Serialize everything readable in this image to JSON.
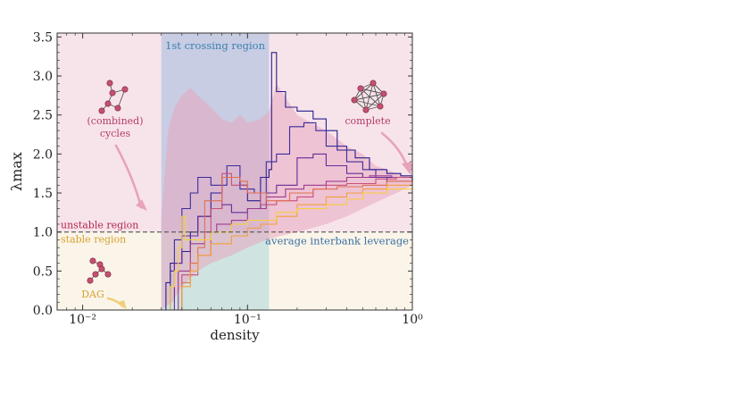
{
  "chart_data": {
    "type": "line",
    "xlabel": "density",
    "ylabel": "λmax",
    "xscale": "log",
    "xlim": [
      0.007,
      1.0
    ],
    "ylim": [
      0.0,
      3.55
    ],
    "xticks": [
      {
        "value": 0.01,
        "label": "10⁻²"
      },
      {
        "value": 0.1,
        "label": "10⁻¹"
      },
      {
        "value": 1.0,
        "label": "10⁰"
      }
    ],
    "yticks": [
      {
        "value": 0.0,
        "label": "0.0"
      },
      {
        "value": 0.5,
        "label": "0.5"
      },
      {
        "value": 1.0,
        "label": "1.0"
      },
      {
        "value": 1.5,
        "label": "1.5"
      },
      {
        "value": 2.0,
        "label": "2.0"
      },
      {
        "value": 2.5,
        "label": "2.5"
      },
      {
        "value": 3.0,
        "label": "3.0"
      },
      {
        "value": 3.5,
        "label": "3.5"
      }
    ],
    "threshold": {
      "y": 1.0,
      "label": "average interbank leverage"
    },
    "crossing_region": {
      "x": [
        0.03,
        0.135
      ],
      "label": "1st crossing region"
    },
    "region_labels": {
      "unstable": "unstable region",
      "stable": "stable region"
    },
    "annotations": [
      {
        "text": "(combined)",
        "x": 0.0155,
        "y": 2.4
      },
      {
        "text": "cycles",
        "x": 0.0155,
        "y": 2.25
      },
      {
        "text": "complete",
        "x": 0.52,
        "y": 2.42
      },
      {
        "text": "DAG",
        "x": 0.0195,
        "y": 0.2
      }
    ],
    "band_upper": [
      [
        0.03,
        1.2
      ],
      [
        0.033,
        2.3
      ],
      [
        0.036,
        2.6
      ],
      [
        0.04,
        2.75
      ],
      [
        0.045,
        2.85
      ],
      [
        0.05,
        2.75
      ],
      [
        0.06,
        2.6
      ],
      [
        0.07,
        2.45
      ],
      [
        0.08,
        2.4
      ],
      [
        0.09,
        2.5
      ],
      [
        0.1,
        2.4
      ],
      [
        0.12,
        2.45
      ],
      [
        0.135,
        2.55
      ],
      [
        0.15,
        2.9
      ],
      [
        0.2,
        2.5
      ],
      [
        0.3,
        2.3
      ],
      [
        0.4,
        2.1
      ],
      [
        0.5,
        2.0
      ],
      [
        0.6,
        1.85
      ],
      [
        0.7,
        1.8
      ],
      [
        0.8,
        1.75
      ],
      [
        1.0,
        1.7
      ]
    ],
    "band_lower": [
      [
        0.03,
        0.0
      ],
      [
        0.035,
        0.1
      ],
      [
        0.04,
        0.3
      ],
      [
        0.05,
        0.5
      ],
      [
        0.06,
        0.6
      ],
      [
        0.08,
        0.7
      ],
      [
        0.1,
        0.8
      ],
      [
        0.13,
        0.9
      ],
      [
        0.16,
        0.95
      ],
      [
        0.2,
        1.0
      ],
      [
        0.3,
        1.1
      ],
      [
        0.4,
        1.2
      ],
      [
        0.5,
        1.3
      ],
      [
        0.6,
        1.38
      ],
      [
        0.8,
        1.5
      ],
      [
        1.0,
        1.6
      ]
    ],
    "series": [
      {
        "color": "#2a1c8c",
        "values": [
          [
            0.031,
            0.0
          ],
          [
            0.032,
            0.35
          ],
          [
            0.034,
            0.6
          ],
          [
            0.04,
            0.75
          ],
          [
            0.045,
            1.0
          ],
          [
            0.05,
            1.2
          ],
          [
            0.06,
            1.5
          ],
          [
            0.07,
            1.7
          ],
          [
            0.09,
            1.6
          ],
          [
            0.1,
            1.4
          ],
          [
            0.12,
            1.7
          ],
          [
            0.135,
            1.8
          ],
          [
            0.14,
            3.3
          ],
          [
            0.15,
            2.8
          ],
          [
            0.17,
            2.6
          ],
          [
            0.2,
            2.55
          ],
          [
            0.25,
            2.45
          ],
          [
            0.3,
            2.3
          ],
          [
            0.35,
            2.05
          ],
          [
            0.45,
            1.95
          ],
          [
            0.55,
            1.8
          ],
          [
            0.7,
            1.75
          ],
          [
            0.85,
            1.72
          ],
          [
            1.0,
            1.65
          ]
        ]
      },
      {
        "color": "#3d2b9c",
        "values": [
          [
            0.032,
            0.0
          ],
          [
            0.034,
            0.5
          ],
          [
            0.036,
            0.9
          ],
          [
            0.04,
            1.3
          ],
          [
            0.045,
            1.5
          ],
          [
            0.05,
            1.7
          ],
          [
            0.06,
            1.6
          ],
          [
            0.075,
            1.85
          ],
          [
            0.09,
            1.55
          ],
          [
            0.11,
            1.5
          ],
          [
            0.13,
            1.9
          ],
          [
            0.15,
            2.0
          ],
          [
            0.18,
            2.35
          ],
          [
            0.22,
            2.4
          ],
          [
            0.26,
            2.3
          ],
          [
            0.3,
            2.1
          ],
          [
            0.4,
            1.9
          ],
          [
            0.5,
            1.8
          ],
          [
            0.6,
            1.7
          ],
          [
            0.8,
            1.7
          ],
          [
            1.0,
            1.65
          ]
        ]
      },
      {
        "color": "#6a2a9a",
        "values": [
          [
            0.034,
            0.0
          ],
          [
            0.036,
            0.6
          ],
          [
            0.04,
            0.95
          ],
          [
            0.05,
            1.2
          ],
          [
            0.06,
            1.3
          ],
          [
            0.07,
            1.35
          ],
          [
            0.08,
            1.25
          ],
          [
            0.1,
            1.3
          ],
          [
            0.12,
            1.5
          ],
          [
            0.15,
            1.6
          ],
          [
            0.2,
            1.95
          ],
          [
            0.25,
            2.0
          ],
          [
            0.3,
            1.85
          ],
          [
            0.4,
            1.75
          ],
          [
            0.5,
            1.7
          ],
          [
            0.7,
            1.65
          ],
          [
            1.0,
            1.65
          ]
        ]
      },
      {
        "color": "#9b3a8f",
        "values": [
          [
            0.035,
            0.0
          ],
          [
            0.038,
            0.5
          ],
          [
            0.045,
            0.85
          ],
          [
            0.055,
            1.0
          ],
          [
            0.065,
            1.1
          ],
          [
            0.08,
            1.15
          ],
          [
            0.1,
            1.3
          ],
          [
            0.13,
            1.45
          ],
          [
            0.17,
            1.55
          ],
          [
            0.22,
            1.6
          ],
          [
            0.3,
            1.65
          ],
          [
            0.4,
            1.7
          ],
          [
            0.55,
            1.72
          ],
          [
            0.75,
            1.7
          ],
          [
            1.0,
            1.65
          ]
        ]
      },
      {
        "color": "#c8507a",
        "values": [
          [
            0.036,
            0.0
          ],
          [
            0.04,
            0.45
          ],
          [
            0.05,
            0.7
          ],
          [
            0.06,
            1.3
          ],
          [
            0.07,
            1.75
          ],
          [
            0.08,
            1.6
          ],
          [
            0.1,
            1.5
          ],
          [
            0.12,
            1.35
          ],
          [
            0.15,
            1.4
          ],
          [
            0.2,
            1.45
          ],
          [
            0.25,
            1.55
          ],
          [
            0.3,
            1.6
          ],
          [
            0.4,
            1.62
          ],
          [
            0.6,
            1.68
          ],
          [
            0.8,
            1.7
          ],
          [
            1.0,
            1.66
          ]
        ]
      },
      {
        "color": "#e07050",
        "values": [
          [
            0.036,
            0.0
          ],
          [
            0.04,
            0.35
          ],
          [
            0.045,
            0.6
          ],
          [
            0.05,
            0.8
          ],
          [
            0.055,
            1.4
          ],
          [
            0.07,
            1.7
          ],
          [
            0.09,
            1.65
          ],
          [
            0.1,
            1.5
          ],
          [
            0.13,
            1.4
          ],
          [
            0.18,
            1.5
          ],
          [
            0.25,
            1.55
          ],
          [
            0.35,
            1.58
          ],
          [
            0.5,
            1.6
          ],
          [
            0.7,
            1.65
          ],
          [
            1.0,
            1.65
          ]
        ]
      },
      {
        "color": "#f2a13a",
        "values": [
          [
            0.037,
            0.0
          ],
          [
            0.04,
            0.3
          ],
          [
            0.045,
            0.5
          ],
          [
            0.05,
            0.7
          ],
          [
            0.06,
            0.85
          ],
          [
            0.08,
            0.95
          ],
          [
            0.1,
            1.05
          ],
          [
            0.12,
            1.1
          ],
          [
            0.15,
            1.2
          ],
          [
            0.2,
            1.35
          ],
          [
            0.3,
            1.45
          ],
          [
            0.4,
            1.5
          ],
          [
            0.5,
            1.55
          ],
          [
            0.7,
            1.6
          ],
          [
            1.0,
            1.65
          ]
        ]
      },
      {
        "color": "#f5cf3c",
        "values": [
          [
            0.032,
            0.0
          ],
          [
            0.034,
            0.3
          ],
          [
            0.036,
            0.5
          ],
          [
            0.038,
            0.8
          ],
          [
            0.04,
            1.2
          ],
          [
            0.042,
            0.9
          ],
          [
            0.05,
            0.9
          ],
          [
            0.06,
            1.0
          ],
          [
            0.08,
            1.1
          ],
          [
            0.1,
            1.15
          ],
          [
            0.15,
            1.25
          ],
          [
            0.2,
            1.3
          ],
          [
            0.3,
            1.35
          ],
          [
            0.4,
            1.42
          ],
          [
            0.5,
            1.5
          ],
          [
            0.7,
            1.55
          ],
          [
            1.0,
            1.62
          ]
        ]
      }
    ]
  },
  "colors": {
    "unstable_bg": "#f7e4ea",
    "stable_bg": "#fbf5e9",
    "crossing_upper": "#c8cde3",
    "crossing_lower": "#cfe3e1",
    "threshold_line": "#555555",
    "band_fill": "#e8a7c0",
    "unstable_label": "#b4264e",
    "stable_label": "#d6a02f",
    "leverage_label": "#3a6ea5",
    "crossing_label": "#3a7fb0",
    "cycles_label": "#b43a6a",
    "complete_label": "#b43a6a",
    "dag_label": "#d6a02f",
    "node_color": "#c5506f"
  }
}
